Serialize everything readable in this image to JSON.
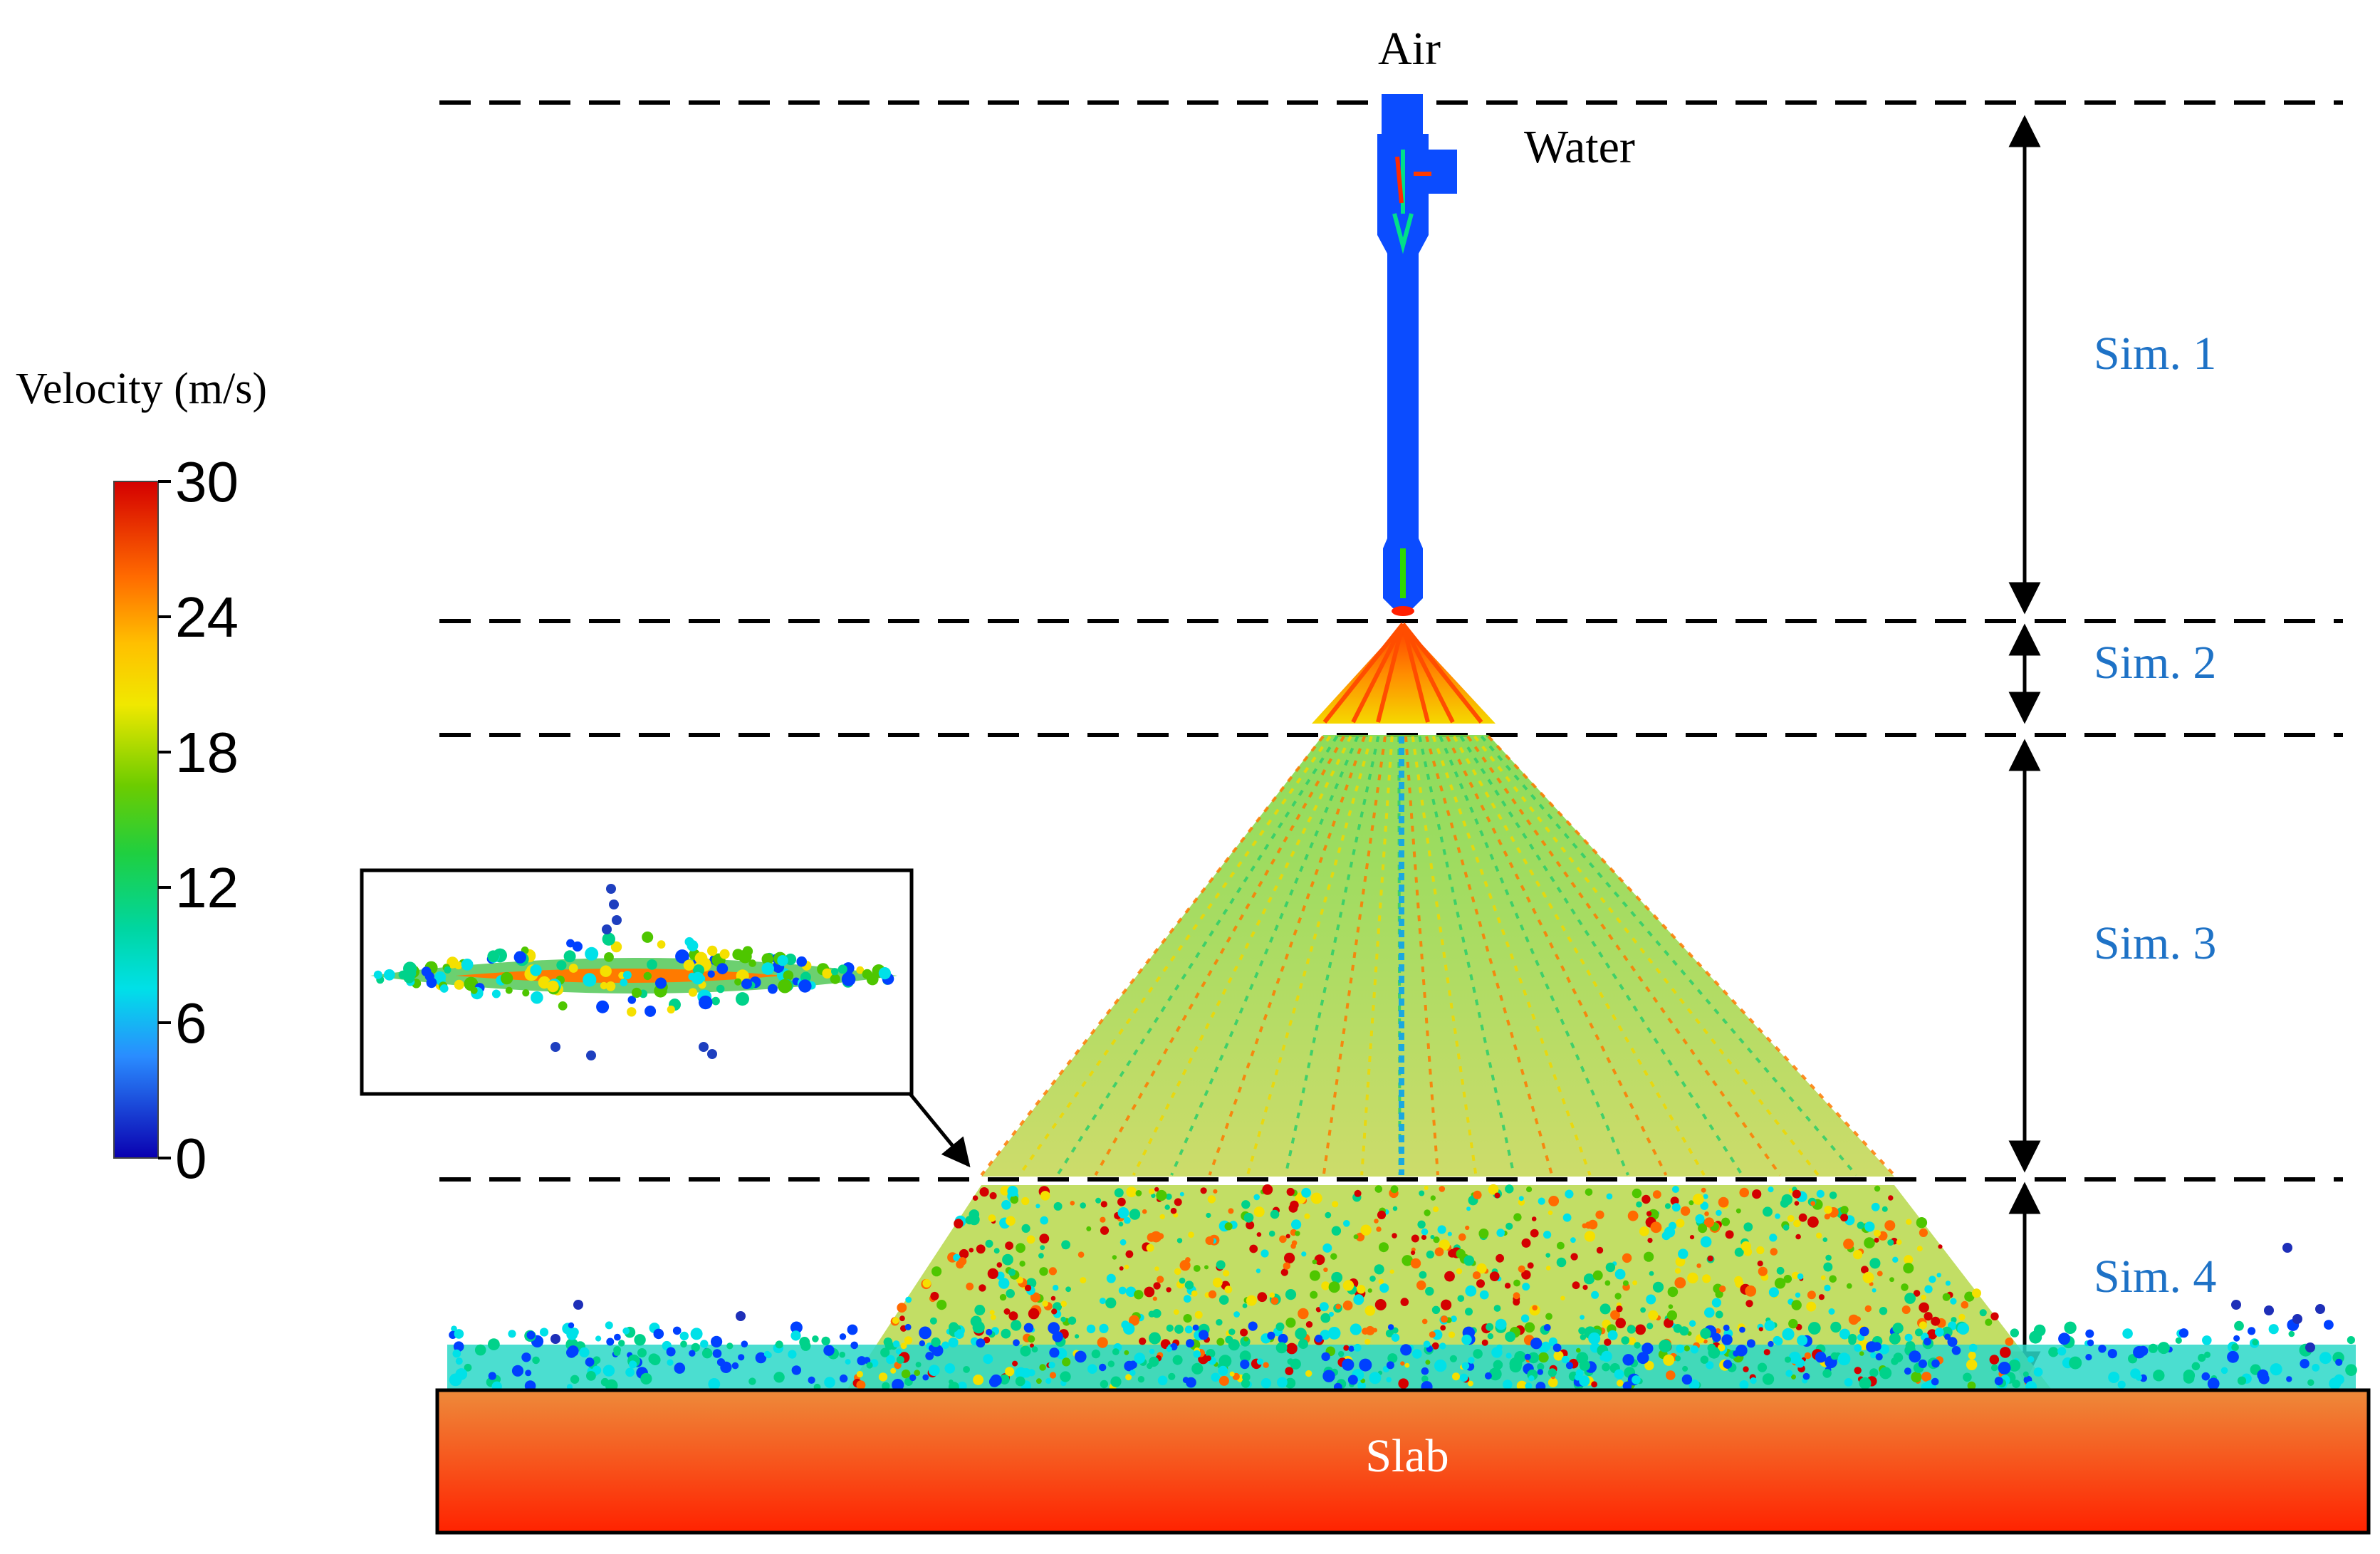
{
  "labels": {
    "air": "Air",
    "water": "Water",
    "slab": "Slab",
    "colorbar_title": "Velocity (m/s)"
  },
  "stages": [
    {
      "label": "Sim. 1"
    },
    {
      "label": "Sim. 2"
    },
    {
      "label": "Sim. 3"
    },
    {
      "label": "Sim. 4"
    }
  ],
  "colorbar": {
    "min": 0,
    "max": 30,
    "ticks": [
      "30",
      "24",
      "18",
      "12",
      "6",
      "0"
    ],
    "colors": [
      "#d40000",
      "#ff6a00",
      "#f5e000",
      "#4ec600",
      "#00d28a",
      "#00e1e8",
      "#0040ff",
      "#0a00b0"
    ]
  },
  "colors": {
    "stage_label": "#1e72c6",
    "slab_top": "#ee8a3a",
    "slab_bottom": "#ff2200",
    "nozzle_body": "#0b4cff",
    "inset_border": "#000000"
  }
}
